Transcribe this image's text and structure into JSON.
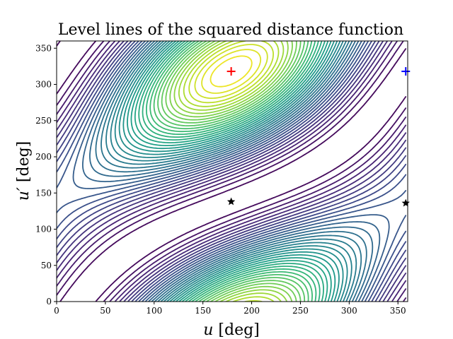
{
  "chart_data": {
    "type": "contour",
    "title": "Level lines of the squared distance function",
    "xlabel": "u [deg]",
    "ylabel": "u′ [deg]",
    "xlim": [
      0,
      360
    ],
    "ylim": [
      0,
      360
    ],
    "xticks": [
      "0",
      "50",
      "100",
      "150",
      "200",
      "250",
      "300",
      "350"
    ],
    "yticks": [
      "0",
      "50",
      "100",
      "150",
      "200",
      "250",
      "300",
      "350"
    ],
    "grid": false,
    "colormap": "viridis",
    "markers": [
      {
        "name": "maximum",
        "symbol": "plus",
        "color": "#ff0000",
        "x": 179,
        "y": 318
      },
      {
        "name": "maximum-copy",
        "symbol": "plus",
        "color": "#0000ff",
        "x": 358,
        "y": 318
      },
      {
        "name": "saddle",
        "symbol": "star",
        "color": "#000000",
        "x": 179,
        "y": 138
      },
      {
        "name": "saddle-copy",
        "symbol": "star",
        "color": "#000000",
        "x": 358,
        "y": 136
      }
    ]
  }
}
